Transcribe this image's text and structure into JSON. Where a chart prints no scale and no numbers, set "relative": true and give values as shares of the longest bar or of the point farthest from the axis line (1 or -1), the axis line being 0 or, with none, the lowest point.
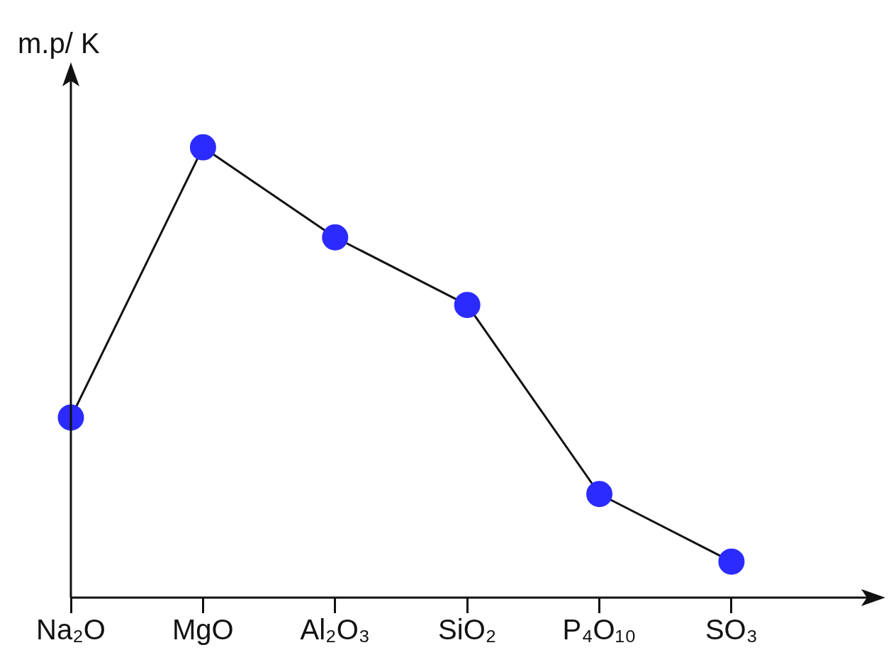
{
  "chart_data": {
    "type": "line",
    "ylabel": "m.p/ K",
    "relative": true,
    "legend": false,
    "grid": false,
    "marker": "circle",
    "line_style": "solid",
    "categories": [
      "Na₂O",
      "MgO",
      "Al₂O₃",
      "SiO₂",
      "P₄O₁₀",
      "SO₃"
    ],
    "series": [
      {
        "color": "#2b2bff",
        "values": [
          0.4,
          1,
          0.8,
          0.65,
          0.23,
          0.08
        ]
      }
    ]
  }
}
